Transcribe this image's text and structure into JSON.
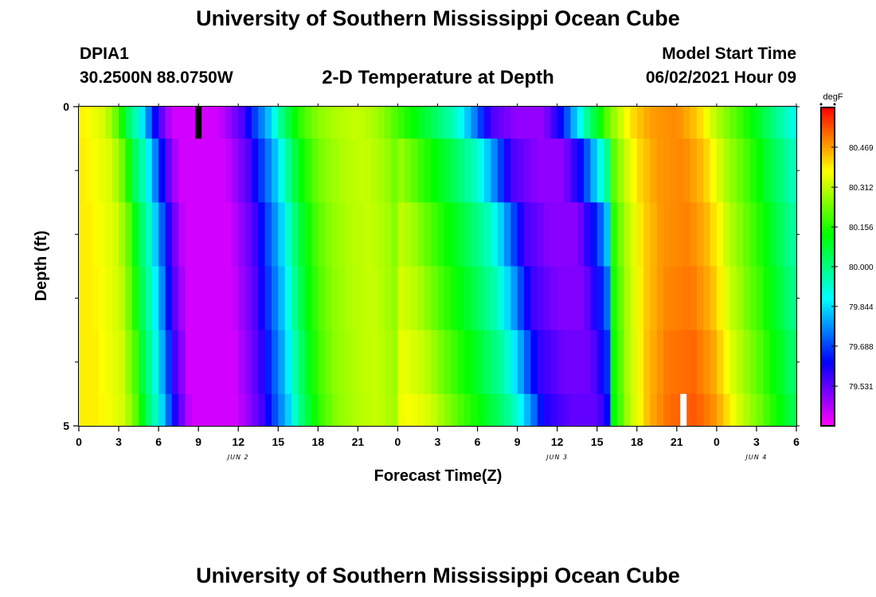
{
  "header": {
    "title_top": "University of Southern Mississippi Ocean Cube",
    "station_id": "DPIA1",
    "station_coords": "30.2500N  88.0750W",
    "plot_title": "2-D Temperature at Depth",
    "model_start_label": "Model Start Time",
    "model_start_value": "06/02/2021 Hour 09"
  },
  "footer": {
    "title_bottom": "University of Southern Mississippi Ocean Cube"
  },
  "chart_data": {
    "type": "heatmap",
    "title": "2-D Temperature at Depth",
    "xlabel": "Forecast Time(Z)",
    "ylabel": "Depth (ft)",
    "x_hours_range": [
      0,
      54
    ],
    "x_tick_labels": [
      "0",
      "3",
      "6",
      "9",
      "12",
      "15",
      "18",
      "21",
      "0",
      "3",
      "6",
      "9",
      "12",
      "15",
      "18",
      "21",
      "0",
      "3",
      "6"
    ],
    "x_tick_hours": [
      0,
      3,
      6,
      9,
      12,
      15,
      18,
      21,
      24,
      27,
      30,
      33,
      36,
      39,
      42,
      45,
      48,
      51,
      54
    ],
    "date_labels": [
      {
        "text": "JUN 2",
        "hour": 12
      },
      {
        "text": "JUN 3",
        "hour": 36
      },
      {
        "text": "JUN 4",
        "hour": 51
      }
    ],
    "y_range": [
      0,
      5
    ],
    "y_tick_labels": [
      "0",
      "5"
    ],
    "y_tick_values": [
      0,
      5
    ],
    "y_minor_ticks": [
      1,
      2,
      3,
      4
    ],
    "colorbar": {
      "unit": "degF",
      "range": [
        79.375,
        80.625
      ],
      "tick_values": [
        80.469,
        80.312,
        80.156,
        80.0,
        79.844,
        79.688,
        79.531
      ],
      "tick_labels": [
        "80.469",
        "80.312",
        "80.156",
        "80.000",
        "79.844",
        "79.688",
        "79.531"
      ]
    },
    "depth_bins_ft": [
      0.25,
      0.75,
      1.75,
      2.75,
      3.75,
      4.75
    ],
    "timeline_hours": [
      0,
      1,
      2,
      3,
      3.6,
      4.4,
      5.2,
      6,
      7,
      10.5,
      12.3,
      13.2,
      14.3,
      15,
      16,
      17,
      18,
      19.5,
      21,
      22.5,
      24.5,
      26.5,
      28.5,
      30,
      31,
      33,
      35,
      36.5,
      37.5,
      38.5,
      40,
      41.5,
      43,
      45,
      46.5,
      48,
      50,
      52,
      54
    ],
    "timeline_temps": [
      80.39,
      80.36,
      80.33,
      80.2,
      80.05,
      79.93,
      79.76,
      79.56,
      79.42,
      79.42,
      79.55,
      79.68,
      79.82,
      79.95,
      80.1,
      80.2,
      80.26,
      80.3,
      80.32,
      80.28,
      80.16,
      80.05,
      79.92,
      79.72,
      79.55,
      79.48,
      79.48,
      79.66,
      79.85,
      80.02,
      80.25,
      80.4,
      80.47,
      80.49,
      80.43,
      80.3,
      80.17,
      80.02,
      79.88
    ],
    "depth_lag_hours": [
      0,
      1.5,
      2.5,
      3.0,
      3.5,
      4.0
    ],
    "depth_offsets": [
      [
        0,
        0,
        0,
        0,
        0,
        0
      ],
      [
        0,
        0.005,
        0.01,
        0.02,
        0.035,
        0.05
      ],
      [
        0,
        0.005,
        0.01,
        0.02,
        0.035,
        0.05
      ]
    ],
    "annotations": [
      {
        "kind": "black-bar",
        "hour": 9,
        "depth_from": 0,
        "depth_to": 0.5
      },
      {
        "kind": "white-bar",
        "hour": 45.5,
        "depth_from": 4.5,
        "depth_to": 5
      }
    ]
  }
}
